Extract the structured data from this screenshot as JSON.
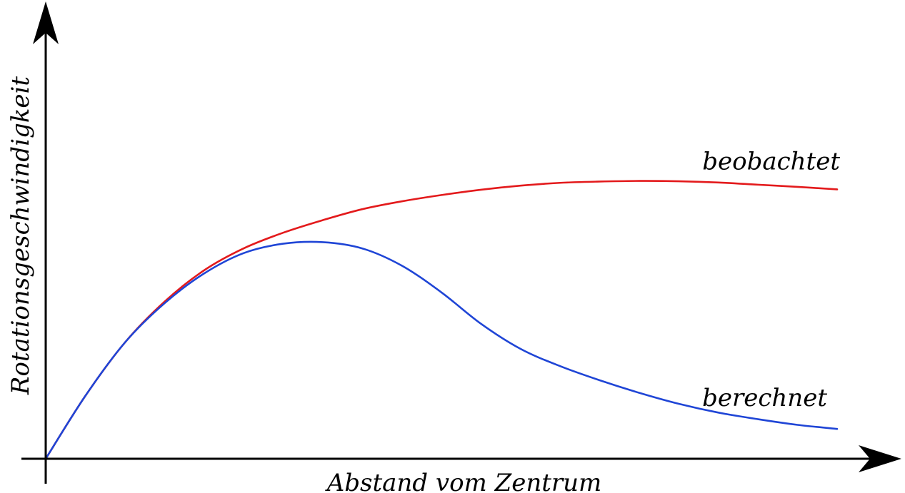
{
  "chart_data": {
    "type": "line",
    "title": "",
    "xlabel": "Abstand vom Zentrum",
    "ylabel": "Rotationsgeschwindigkeit",
    "ticks": "none",
    "grid": false,
    "legend": "inline labels at curve ends",
    "x_range": [
      0,
      100
    ],
    "y_range": [
      0,
      100
    ],
    "series": [
      {
        "name": "beobachtet",
        "color": "#e31a1c",
        "points": [
          [
            0,
            0
          ],
          [
            5,
            20
          ],
          [
            10,
            37
          ],
          [
            15,
            50
          ],
          [
            20,
            60
          ],
          [
            25,
            67
          ],
          [
            30,
            72
          ],
          [
            35,
            76
          ],
          [
            40,
            79.5
          ],
          [
            45,
            82
          ],
          [
            50,
            84
          ],
          [
            55,
            85.7
          ],
          [
            60,
            87
          ],
          [
            65,
            87.9
          ],
          [
            70,
            88.3
          ],
          [
            75,
            88.5
          ],
          [
            80,
            88.4
          ],
          [
            85,
            88
          ],
          [
            90,
            87.3
          ],
          [
            95,
            86.6
          ],
          [
            100,
            85.8
          ]
        ]
      },
      {
        "name": "berechnet",
        "color": "#1f45d6",
        "points": [
          [
            0,
            0
          ],
          [
            5,
            20
          ],
          [
            10,
            37
          ],
          [
            15,
            49.5
          ],
          [
            20,
            59
          ],
          [
            25,
            65.5
          ],
          [
            30,
            68.5
          ],
          [
            35,
            69
          ],
          [
            40,
            67
          ],
          [
            45,
            61.5
          ],
          [
            50,
            53
          ],
          [
            55,
            43
          ],
          [
            60,
            35
          ],
          [
            65,
            29.5
          ],
          [
            70,
            25
          ],
          [
            75,
            21
          ],
          [
            80,
            17.5
          ],
          [
            85,
            14.7
          ],
          [
            90,
            12.6
          ],
          [
            95,
            10.8
          ],
          [
            100,
            9.5
          ]
        ]
      }
    ]
  }
}
